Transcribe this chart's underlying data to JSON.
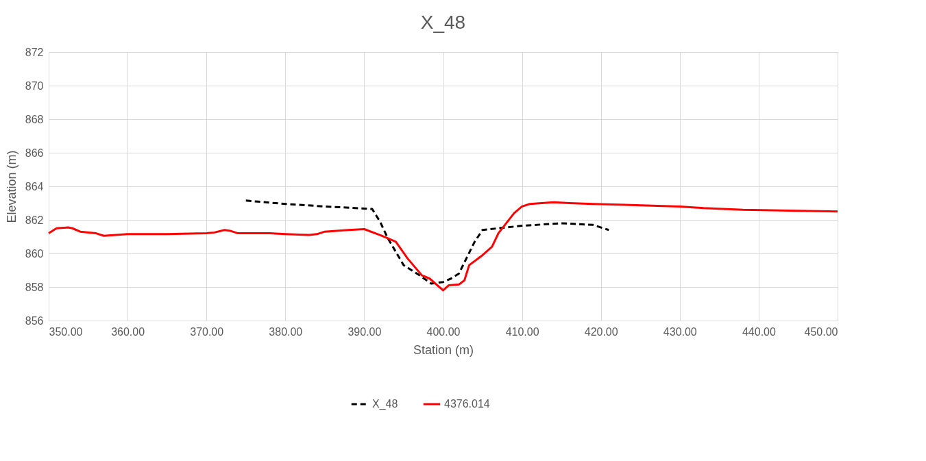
{
  "chart_data": {
    "type": "line",
    "title": "X_48",
    "xlabel": "Station (m)",
    "ylabel": "Elevation (m)",
    "xlim": [
      350,
      450
    ],
    "ylim": [
      856,
      872
    ],
    "xticks": [
      {
        "value": 350,
        "label": "350.00"
      },
      {
        "value": 360,
        "label": "360.00"
      },
      {
        "value": 370,
        "label": "370.00"
      },
      {
        "value": 380,
        "label": "380.00"
      },
      {
        "value": 390,
        "label": "390.00"
      },
      {
        "value": 400,
        "label": "400.00"
      },
      {
        "value": 410,
        "label": "410.00"
      },
      {
        "value": 420,
        "label": "420.00"
      },
      {
        "value": 430,
        "label": "430.00"
      },
      {
        "value": 440,
        "label": "440.00"
      },
      {
        "value": 450,
        "label": "450.00"
      }
    ],
    "yticks": [
      856,
      858,
      860,
      862,
      864,
      866,
      868,
      870,
      872
    ],
    "grid": true,
    "legend": "bottom",
    "marker": "none",
    "series": [
      {
        "name": "X_48",
        "color": "#000000",
        "line_style": "dashed",
        "x": [
          375,
          380,
          385,
          391,
          392,
          393,
          395,
          397,
          398.5,
          400,
          401,
          402,
          404,
          405,
          407,
          410,
          415,
          419,
          421
        ],
        "values": [
          863.15,
          862.95,
          862.8,
          862.65,
          861.9,
          860.9,
          859.3,
          858.7,
          858.2,
          858.3,
          858.5,
          858.8,
          860.7,
          861.4,
          861.5,
          861.65,
          861.8,
          861.7,
          861.4
        ]
      },
      {
        "name": "4376.014",
        "color": "#ff0000",
        "line_style": "solid",
        "x": [
          350,
          351,
          352.5,
          353,
          354,
          356,
          357,
          360,
          365,
          370,
          371,
          372.3,
          373,
          374,
          378,
          380,
          383,
          384,
          385,
          388,
          390,
          392,
          393,
          394,
          395.5,
          397.3,
          398.3,
          400,
          400.7,
          402,
          402.7,
          403.3,
          405,
          406.2,
          407,
          408,
          409,
          410,
          411,
          414,
          416,
          419,
          423,
          430,
          433,
          438,
          444,
          450
        ],
        "values": [
          861.2,
          861.5,
          861.55,
          861.5,
          861.3,
          861.2,
          861.05,
          861.15,
          861.15,
          861.2,
          861.25,
          861.4,
          861.35,
          861.2,
          861.2,
          861.15,
          861.1,
          861.15,
          861.3,
          861.4,
          861.45,
          861.1,
          860.9,
          860.7,
          859.7,
          858.7,
          858.5,
          857.8,
          858.1,
          858.15,
          858.4,
          859.3,
          859.9,
          860.4,
          861.2,
          861.8,
          862.4,
          862.8,
          862.95,
          863.05,
          863.0,
          862.95,
          862.9,
          862.8,
          862.7,
          862.6,
          862.55,
          862.5
        ]
      }
    ]
  }
}
